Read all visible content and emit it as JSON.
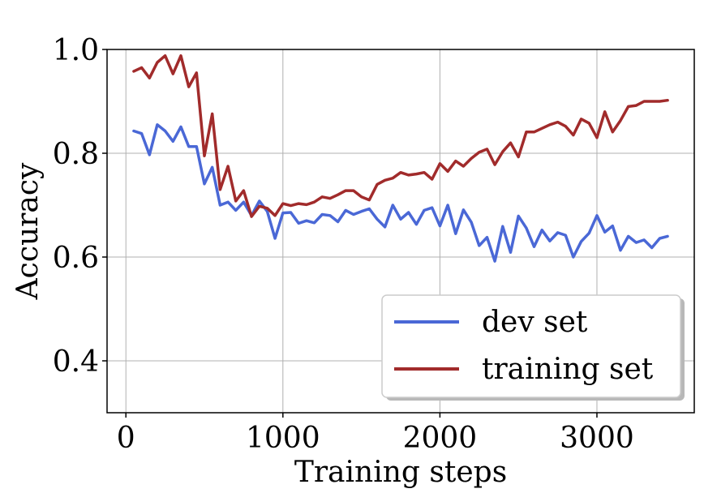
{
  "chart_data": {
    "type": "line",
    "title": "",
    "xlabel": "Training steps",
    "ylabel": "Accuracy",
    "xlim": [
      -120,
      3620
    ],
    "ylim": [
      0.3,
      1.0
    ],
    "xticks": [
      0,
      1000,
      2000,
      3000
    ],
    "xtick_labels": [
      "0",
      "1000",
      "2000",
      "3000"
    ],
    "yticks": [
      0.4,
      0.6,
      0.8,
      1.0
    ],
    "ytick_labels": [
      "0.4",
      "0.6",
      "0.8",
      "1.0"
    ],
    "grid": true,
    "legend_position": "lower-right",
    "series": [
      {
        "name": "dev set",
        "color": "#4a68d6",
        "x": [
          50,
          100,
          150,
          200,
          250,
          300,
          350,
          400,
          450,
          500,
          550,
          600,
          650,
          700,
          750,
          800,
          850,
          900,
          950,
          1000,
          1050,
          1100,
          1150,
          1200,
          1250,
          1300,
          1350,
          1400,
          1450,
          1500,
          1550,
          1600,
          1650,
          1700,
          1750,
          1800,
          1850,
          1900,
          1950,
          2000,
          2050,
          2100,
          2150,
          2200,
          2250,
          2300,
          2350,
          2400,
          2450,
          2500,
          2550,
          2600,
          2650,
          2700,
          2750,
          2800,
          2850,
          2900,
          2950,
          3000,
          3050,
          3100,
          3150,
          3200,
          3250,
          3300,
          3350,
          3400,
          3450
        ],
        "y": [
          0.843,
          0.838,
          0.797,
          0.855,
          0.843,
          0.823,
          0.851,
          0.813,
          0.813,
          0.741,
          0.773,
          0.7,
          0.706,
          0.69,
          0.706,
          0.68,
          0.708,
          0.688,
          0.636,
          0.685,
          0.686,
          0.665,
          0.67,
          0.666,
          0.682,
          0.68,
          0.668,
          0.69,
          0.682,
          0.688,
          0.693,
          0.673,
          0.658,
          0.7,
          0.673,
          0.686,
          0.663,
          0.69,
          0.695,
          0.66,
          0.7,
          0.645,
          0.691,
          0.667,
          0.622,
          0.638,
          0.592,
          0.659,
          0.609,
          0.679,
          0.656,
          0.62,
          0.652,
          0.631,
          0.647,
          0.642,
          0.6,
          0.63,
          0.646,
          0.68,
          0.648,
          0.66,
          0.613,
          0.64,
          0.628,
          0.633,
          0.618,
          0.636,
          0.64
        ]
      },
      {
        "name": "training set",
        "color": "#a12b2b",
        "x": [
          50,
          100,
          150,
          200,
          250,
          300,
          350,
          400,
          450,
          500,
          550,
          600,
          650,
          700,
          750,
          800,
          850,
          900,
          950,
          1000,
          1050,
          1100,
          1150,
          1200,
          1250,
          1300,
          1350,
          1400,
          1450,
          1500,
          1550,
          1600,
          1650,
          1700,
          1750,
          1800,
          1850,
          1900,
          1950,
          2000,
          2050,
          2100,
          2150,
          2200,
          2250,
          2300,
          2350,
          2400,
          2450,
          2500,
          2550,
          2600,
          2650,
          2700,
          2750,
          2800,
          2850,
          2900,
          2950,
          3000,
          3050,
          3100,
          3150,
          3200,
          3250,
          3300,
          3350,
          3400,
          3450
        ],
        "y": [
          0.958,
          0.965,
          0.945,
          0.975,
          0.988,
          0.953,
          0.988,
          0.928,
          0.955,
          0.795,
          0.876,
          0.73,
          0.775,
          0.708,
          0.728,
          0.678,
          0.698,
          0.694,
          0.68,
          0.703,
          0.699,
          0.703,
          0.701,
          0.706,
          0.716,
          0.713,
          0.72,
          0.728,
          0.728,
          0.716,
          0.71,
          0.74,
          0.748,
          0.752,
          0.763,
          0.758,
          0.76,
          0.763,
          0.75,
          0.78,
          0.765,
          0.785,
          0.775,
          0.79,
          0.802,
          0.808,
          0.778,
          0.803,
          0.82,
          0.793,
          0.841,
          0.841,
          0.848,
          0.855,
          0.86,
          0.852,
          0.835,
          0.866,
          0.858,
          0.83,
          0.88,
          0.841,
          0.863,
          0.89,
          0.892,
          0.9,
          0.9,
          0.9,
          0.902
        ]
      }
    ]
  }
}
